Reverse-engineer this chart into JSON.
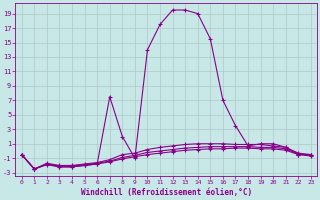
{
  "xlabel": "Windchill (Refroidissement éolien,°C)",
  "background_color": "#c8e8e8",
  "grid_color": "#b0c8c8",
  "line_color": "#880088",
  "x_ticks": [
    0,
    1,
    2,
    3,
    4,
    5,
    6,
    7,
    8,
    9,
    10,
    11,
    12,
    13,
    14,
    15,
    16,
    17,
    18,
    19,
    20,
    21,
    22,
    23
  ],
  "y_ticks": [
    -3,
    -1,
    1,
    3,
    5,
    7,
    9,
    11,
    13,
    15,
    17,
    19
  ],
  "xlim": [
    -0.5,
    23.5
  ],
  "ylim": [
    -3.5,
    20.5
  ],
  "curves": [
    {
      "x": [
        0,
        1,
        2,
        3,
        4,
        5,
        6,
        7,
        8,
        9,
        10,
        11,
        12,
        13,
        14,
        15,
        16,
        17,
        18,
        19,
        20,
        21,
        22,
        23
      ],
      "y": [
        -0.5,
        -2.5,
        -1.8,
        -2.2,
        -2.2,
        -2.0,
        -1.8,
        7.5,
        2.0,
        -1.0,
        14.0,
        17.5,
        19.5,
        19.5,
        19.0,
        15.5,
        7.0,
        3.5,
        0.7,
        1.0,
        1.0,
        0.5,
        -0.5,
        -0.5
      ]
    },
    {
      "x": [
        0,
        1,
        2,
        3,
        4,
        5,
        6,
        7,
        8,
        9,
        10,
        11,
        12,
        13,
        14,
        15,
        16,
        17,
        18,
        19,
        20,
        21,
        22,
        23
      ],
      "y": [
        -0.5,
        -2.5,
        -1.7,
        -2.0,
        -2.0,
        -1.8,
        -1.6,
        -1.2,
        -0.5,
        -0.3,
        0.2,
        0.5,
        0.7,
        0.9,
        1.0,
        1.0,
        1.0,
        0.9,
        0.9,
        0.9,
        0.7,
        0.5,
        -0.3,
        -0.5
      ]
    },
    {
      "x": [
        0,
        1,
        2,
        3,
        4,
        5,
        6,
        7,
        8,
        9,
        10,
        11,
        12,
        13,
        14,
        15,
        16,
        17,
        18,
        19,
        20,
        21,
        22,
        23
      ],
      "y": [
        -0.5,
        -2.5,
        -1.8,
        -2.1,
        -2.1,
        -1.9,
        -1.7,
        -1.4,
        -0.9,
        -0.6,
        -0.2,
        0.0,
        0.2,
        0.4,
        0.5,
        0.6,
        0.6,
        0.6,
        0.6,
        0.5,
        0.5,
        0.3,
        -0.4,
        -0.6
      ]
    },
    {
      "x": [
        0,
        1,
        2,
        3,
        4,
        5,
        6,
        7,
        8,
        9,
        10,
        11,
        12,
        13,
        14,
        15,
        16,
        17,
        18,
        19,
        20,
        21,
        22,
        23
      ],
      "y": [
        -0.5,
        -2.5,
        -1.9,
        -2.2,
        -2.2,
        -2.0,
        -1.8,
        -1.5,
        -1.1,
        -0.8,
        -0.5,
        -0.3,
        -0.1,
        0.1,
        0.2,
        0.3,
        0.3,
        0.4,
        0.4,
        0.3,
        0.3,
        0.1,
        -0.5,
        -0.7
      ]
    }
  ]
}
